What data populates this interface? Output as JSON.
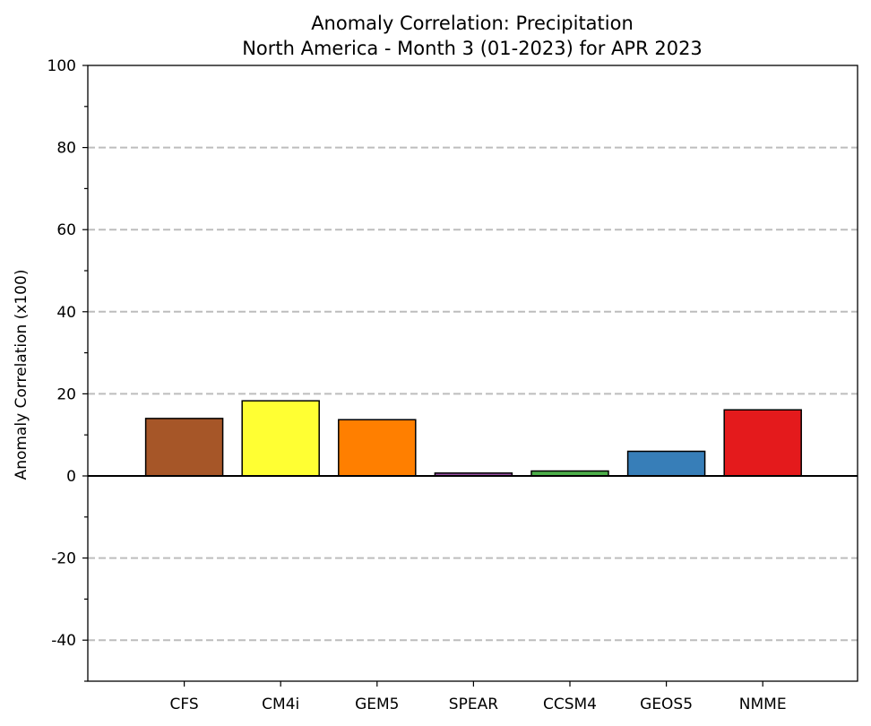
{
  "chart_data": {
    "type": "bar",
    "title": "Anomaly Correlation: Precipitation",
    "subtitle": "North America - Month 3 (01-2023) for APR 2023",
    "xlabel": "",
    "ylabel": "Anomaly Correlation (x100)",
    "ylim": [
      -50,
      100
    ],
    "yticks": [
      -40,
      -20,
      0,
      20,
      40,
      60,
      80,
      100
    ],
    "grid": "dashed horizontal at major ticks",
    "categories": [
      "CFS",
      "CM4i",
      "GEM5",
      "SPEAR",
      "CCSM4",
      "GEOS5",
      "NMME"
    ],
    "values": [
      14,
      18.3,
      13.7,
      0.7,
      1.2,
      6,
      16.1
    ],
    "colors": [
      "#a65628",
      "#ffff33",
      "#ff7f00",
      "#984ea3",
      "#4daf4a",
      "#377eb8",
      "#e41a1c"
    ]
  }
}
